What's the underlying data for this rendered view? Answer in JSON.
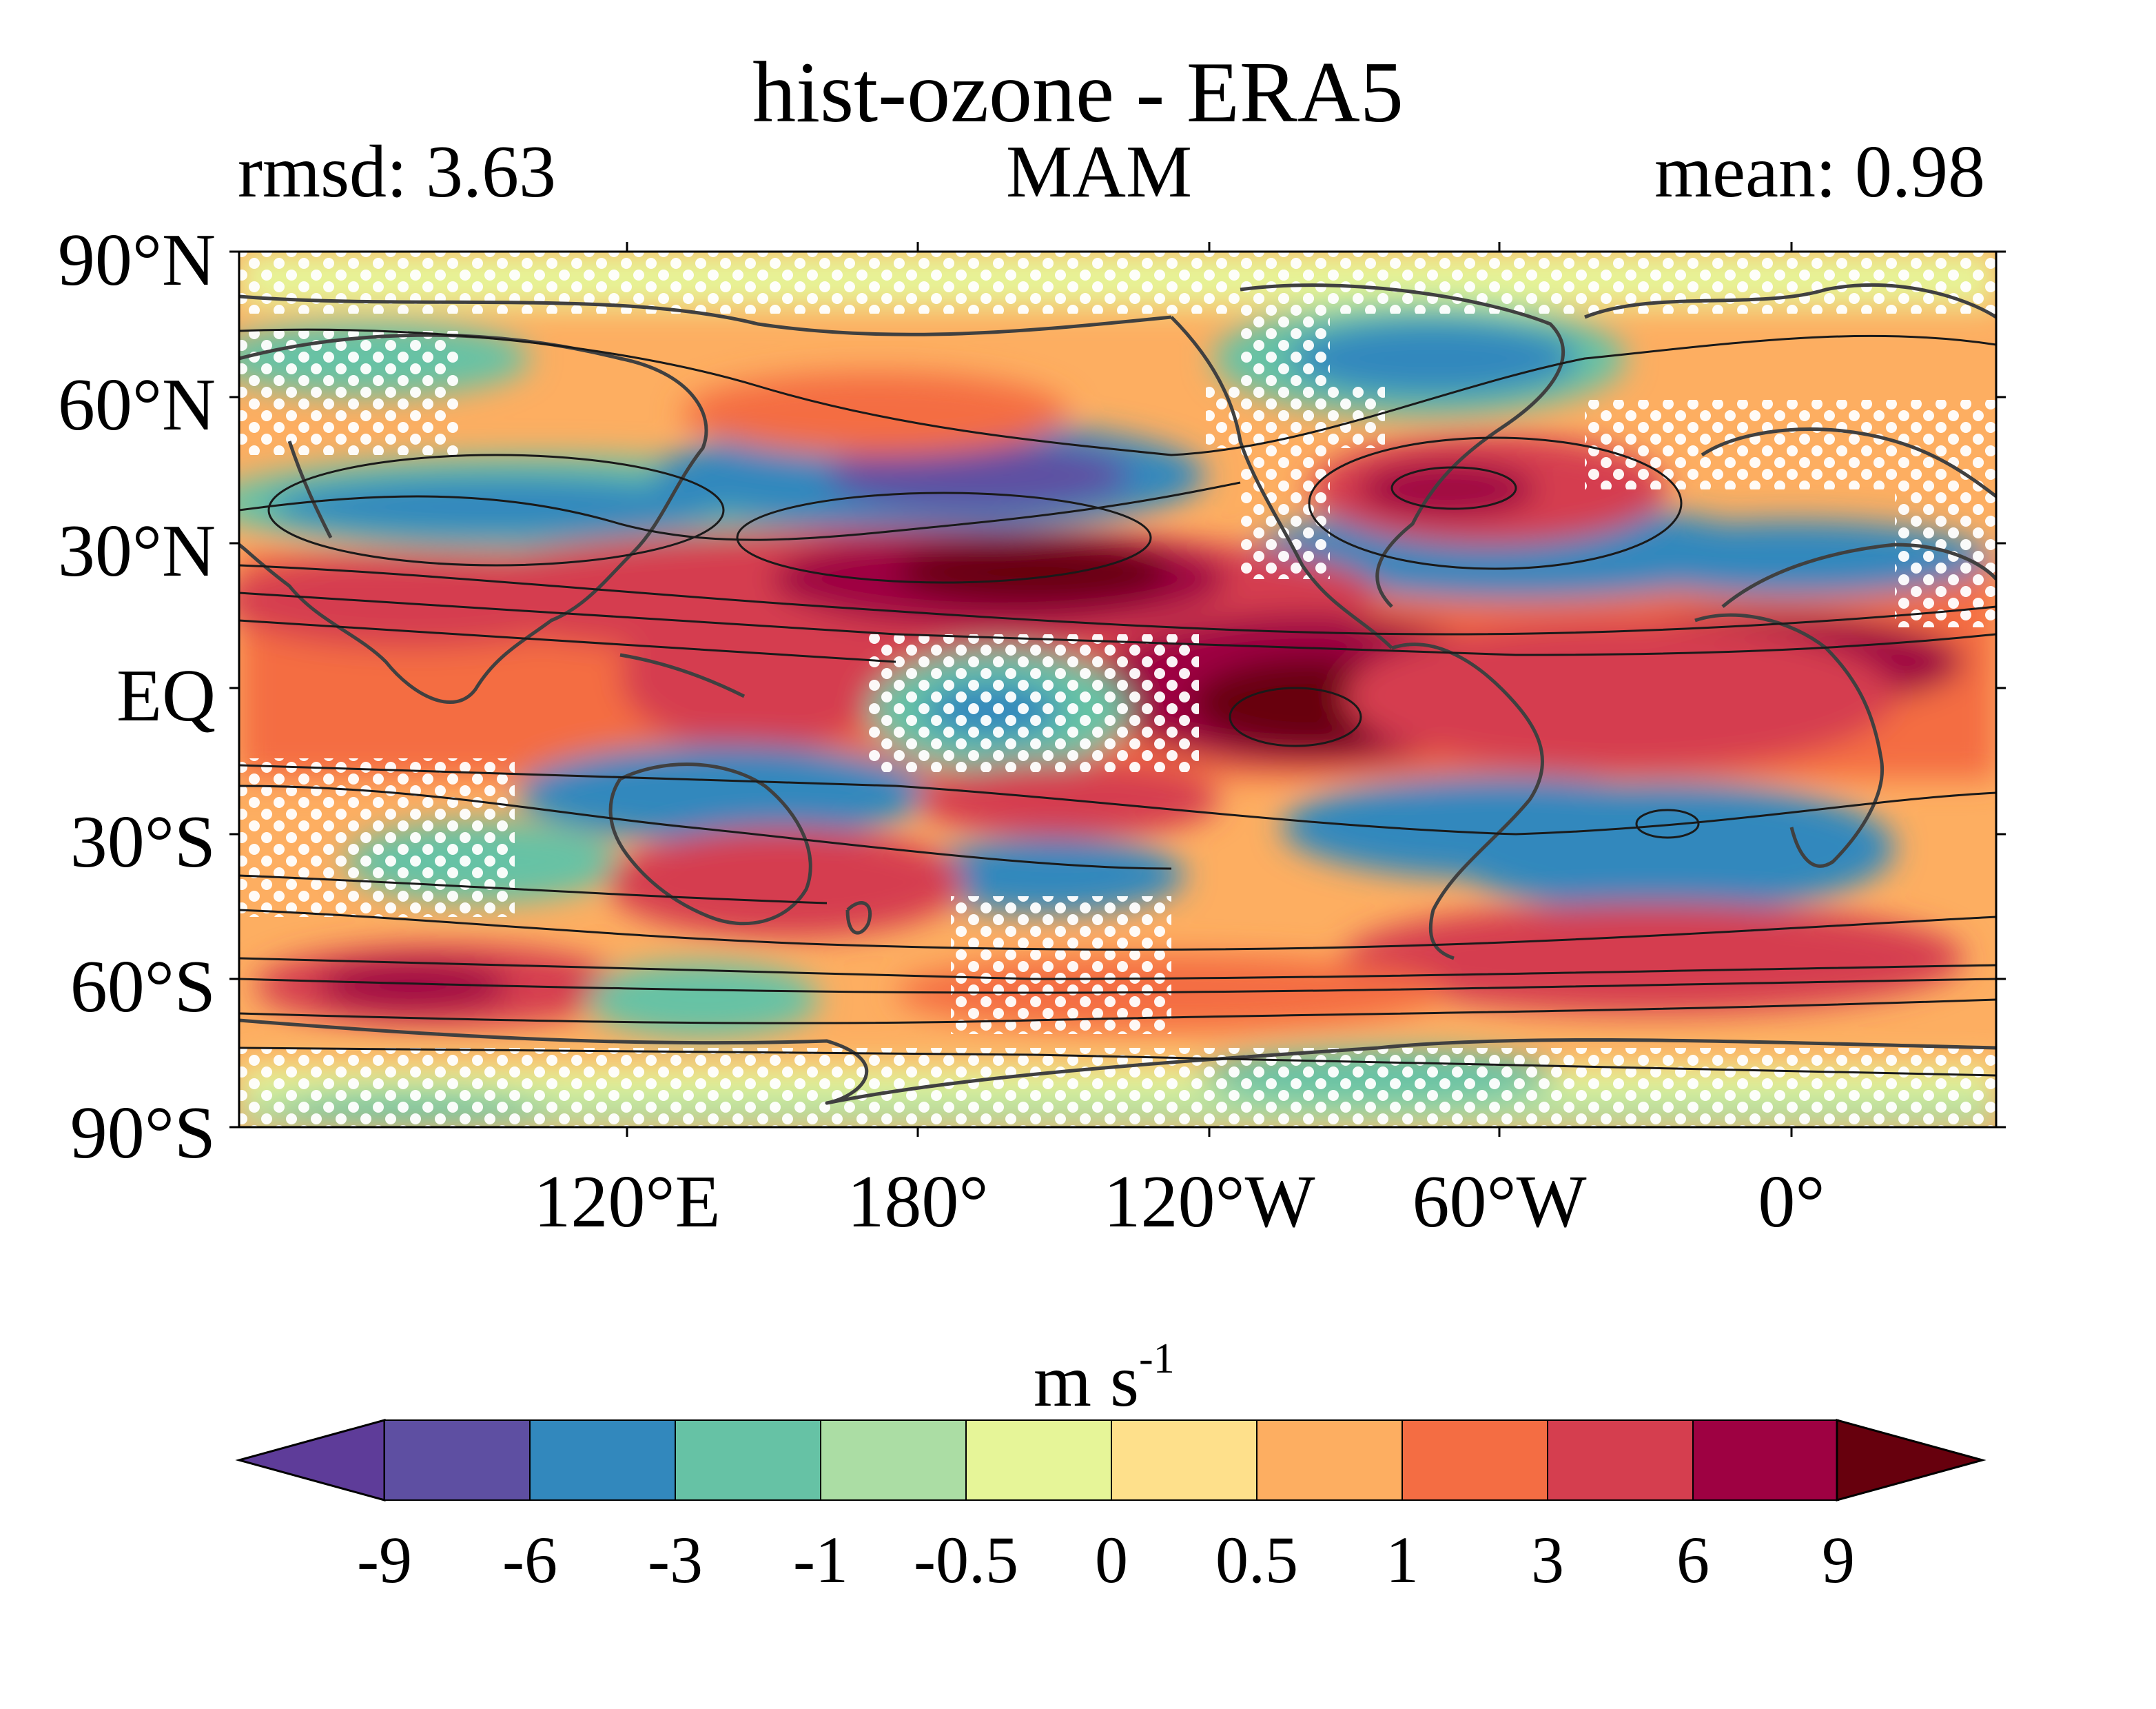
{
  "map": {
    "title": "hist-ozone - ERA5",
    "stat_left": "rmsd: 3.63",
    "season": "MAM",
    "stat_right": "mean: 0.98",
    "lat_labels": [
      "90°N",
      "60°N",
      "30°N",
      "EQ",
      "30°S",
      "60°S",
      "90°S"
    ],
    "lon_labels": [
      "120°E",
      "180°",
      "120°W",
      "60°W",
      "0°"
    ],
    "features": [
      "filled contours",
      "black contour lines",
      "coastlines",
      "white stippling"
    ]
  },
  "colorbar": {
    "unit": "m s",
    "unit_exponent": "-1",
    "ticks": [
      "-9",
      "-6",
      "-3",
      "-1",
      "-0.5",
      "0",
      "0.5",
      "1",
      "3",
      "6",
      "9"
    ],
    "colors": [
      "#5e3c99",
      "#5e4fa2",
      "#3288bd",
      "#66c2a5",
      "#abdda4",
      "#e6f598",
      "#fee08b",
      "#fdae61",
      "#f46d43",
      "#d53e4f",
      "#9e0142",
      "#67000d"
    ]
  }
}
